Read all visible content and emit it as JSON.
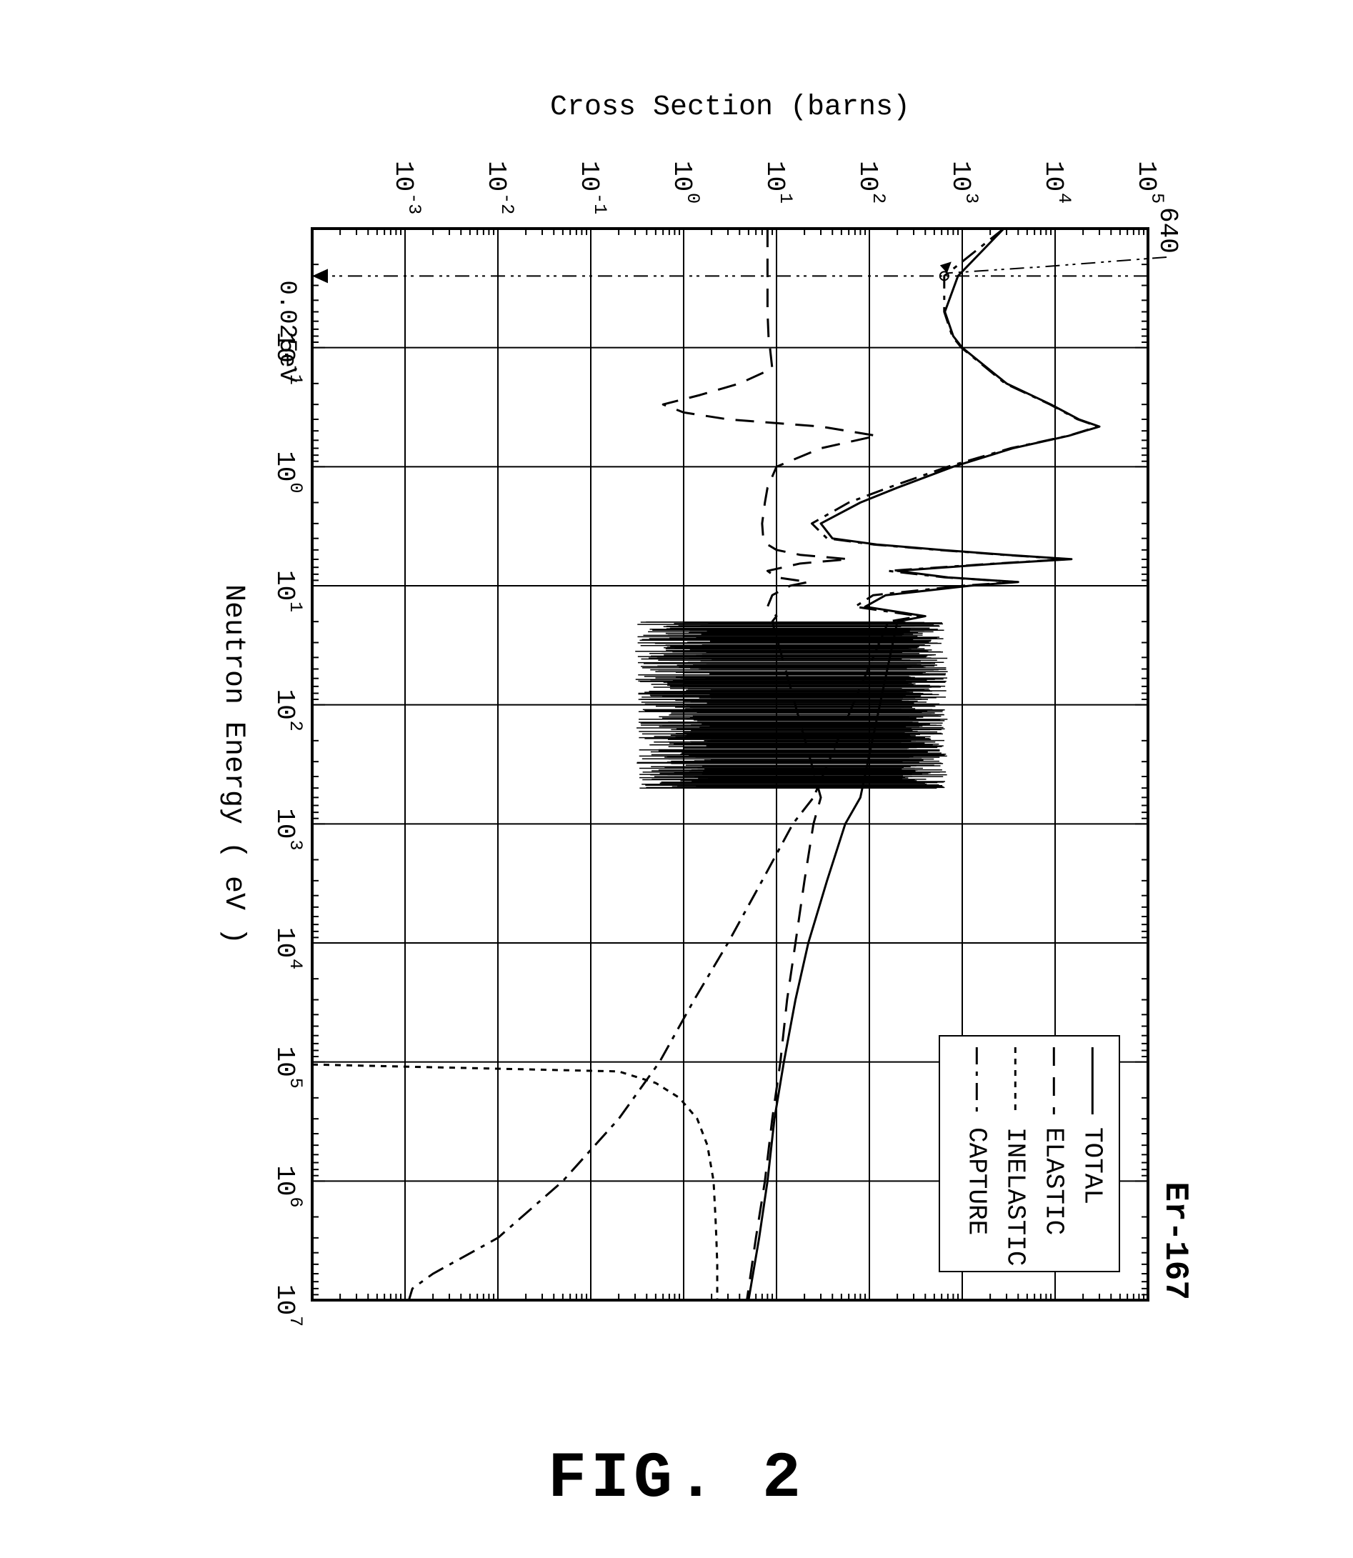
{
  "figure_caption": "FIG. 2",
  "isotope_title": "Er-167",
  "x_axis": {
    "label": "Neutron Energy ( eV )",
    "scale": "log",
    "lim": [
      0.01,
      10000000.0
    ],
    "ticks_exp": [
      -1,
      0,
      1,
      2,
      3,
      4,
      5,
      6,
      7
    ],
    "label_fontsize": 40,
    "tick_fontsize": 36
  },
  "y_axis": {
    "label": "Cross Section (barns)",
    "scale": "log",
    "lim": [
      0.0001,
      100000.0
    ],
    "ticks_exp": [
      -3,
      -2,
      -1,
      0,
      1,
      2,
      3,
      4,
      5
    ],
    "label_fontsize": 40,
    "tick_fontsize": 36
  },
  "colors": {
    "bg": "#ffffff",
    "ink": "#000000",
    "axis": "#000000",
    "grid": "#000000"
  },
  "line_width": 3,
  "grid_line_width": 2,
  "legend": {
    "items": [
      {
        "label": "TOTAL",
        "dash": "solid"
      },
      {
        "label": "ELASTIC",
        "dash": "long"
      },
      {
        "label": "INELASTIC",
        "dash": "short"
      },
      {
        "label": "CAPTURE",
        "dash": "dashdot"
      }
    ],
    "fontsize": 36,
    "position": "upper-right",
    "box": true
  },
  "annotations": {
    "thermal_energy_label": "0.025eV",
    "thermal_energy_x": 0.025,
    "capture_640_label": "640",
    "capture_640_y": 640
  },
  "resonance_band": {
    "x_lo": 20,
    "x_hi": 500,
    "y_lo": 0.3,
    "y_hi": 700
  },
  "series": {
    "total": {
      "dash": "solid",
      "points": [
        [
          0.01,
          2800
        ],
        [
          0.025,
          900
        ],
        [
          0.05,
          650
        ],
        [
          0.08,
          800
        ],
        [
          0.1,
          1000
        ],
        [
          0.2,
          3000
        ],
        [
          0.3,
          9000
        ],
        [
          0.4,
          18000
        ],
        [
          0.46,
          30000
        ],
        [
          0.55,
          14000
        ],
        [
          0.7,
          3500
        ],
        [
          1.0,
          800
        ],
        [
          1.5,
          200
        ],
        [
          2.0,
          80
        ],
        [
          3.0,
          30
        ],
        [
          4.0,
          40
        ],
        [
          4.5,
          120
        ],
        [
          5.0,
          600
        ],
        [
          5.5,
          3000
        ],
        [
          5.98,
          15000
        ],
        [
          6.5,
          2500
        ],
        [
          7.5,
          200
        ],
        [
          8.5,
          700
        ],
        [
          9.3,
          4000
        ],
        [
          10,
          1200
        ],
        [
          12,
          150
        ],
        [
          15,
          90
        ],
        [
          18,
          400
        ],
        [
          20,
          200
        ],
        [
          600,
          80
        ],
        [
          1000,
          55
        ],
        [
          3000,
          35
        ],
        [
          10000.0,
          22
        ],
        [
          30000.0,
          16
        ],
        [
          100000.0,
          12
        ],
        [
          300000.0,
          9.5
        ],
        [
          1000000.0,
          8
        ],
        [
          3000000.0,
          6.5
        ],
        [
          10000000.0,
          5
        ]
      ]
    },
    "elastic": {
      "dash": "long",
      "points": [
        [
          0.01,
          8
        ],
        [
          0.025,
          8
        ],
        [
          0.05,
          8
        ],
        [
          0.08,
          8.2
        ],
        [
          0.1,
          8.5
        ],
        [
          0.15,
          9
        ],
        [
          0.2,
          4
        ],
        [
          0.25,
          1.5
        ],
        [
          0.3,
          0.6
        ],
        [
          0.35,
          1.0
        ],
        [
          0.4,
          3
        ],
        [
          0.46,
          30
        ],
        [
          0.55,
          120
        ],
        [
          0.7,
          30
        ],
        [
          1.0,
          10
        ],
        [
          1.5,
          8
        ],
        [
          2.0,
          7.5
        ],
        [
          3.0,
          7
        ],
        [
          4.0,
          7.2
        ],
        [
          4.5,
          8
        ],
        [
          5.0,
          10
        ],
        [
          5.5,
          18
        ],
        [
          5.98,
          60
        ],
        [
          6.5,
          18
        ],
        [
          7.5,
          8
        ],
        [
          8.5,
          10
        ],
        [
          9.3,
          22
        ],
        [
          10,
          14
        ],
        [
          12,
          9
        ],
        [
          15,
          8
        ],
        [
          18,
          10
        ],
        [
          20,
          9
        ],
        [
          600,
          30
        ],
        [
          1000,
          25
        ],
        [
          3000,
          20
        ],
        [
          10000.0,
          16
        ],
        [
          30000.0,
          13
        ],
        [
          100000.0,
          11
        ],
        [
          300000.0,
          9
        ],
        [
          1000000.0,
          7.5
        ],
        [
          3000000.0,
          6
        ],
        [
          10000000.0,
          4.8
        ]
      ]
    },
    "inelastic": {
      "dash": "short",
      "points": [
        [
          105000.0,
          0.0001
        ],
        [
          120000.0,
          0.2
        ],
        [
          150000.0,
          0.5
        ],
        [
          200000.0,
          0.9
        ],
        [
          300000.0,
          1.4
        ],
        [
          500000.0,
          1.8
        ],
        [
          800000.0,
          2.0
        ],
        [
          1000000.0,
          2.1
        ],
        [
          2000000.0,
          2.2
        ],
        [
          3000000.0,
          2.25
        ],
        [
          5000000.0,
          2.3
        ],
        [
          10000000.0,
          2.3
        ]
      ]
    },
    "capture": {
      "dash": "dashdot",
      "points": [
        [
          0.01,
          2800
        ],
        [
          0.025,
          640
        ],
        [
          0.05,
          640
        ],
        [
          0.08,
          780
        ],
        [
          0.1,
          980
        ],
        [
          0.2,
          2900
        ],
        [
          0.3,
          8800
        ],
        [
          0.4,
          17500
        ],
        [
          0.46,
          29000
        ],
        [
          0.55,
          13800
        ],
        [
          0.7,
          3300
        ],
        [
          1.0,
          700
        ],
        [
          1.5,
          160
        ],
        [
          2.0,
          60
        ],
        [
          3.0,
          24
        ],
        [
          4.0,
          35
        ],
        [
          4.5,
          110
        ],
        [
          5.0,
          550
        ],
        [
          5.5,
          2800
        ],
        [
          5.98,
          14000
        ],
        [
          6.5,
          2300
        ],
        [
          7.5,
          160
        ],
        [
          8.5,
          650
        ],
        [
          9.3,
          3800
        ],
        [
          10,
          1000
        ],
        [
          12,
          110
        ],
        [
          15,
          70
        ],
        [
          18,
          350
        ],
        [
          20,
          160
        ],
        [
          600,
          25
        ],
        [
          1000,
          15
        ],
        [
          3000,
          7
        ],
        [
          10000.0,
          3
        ],
        [
          30000.0,
          1.3
        ],
        [
          100000.0,
          0.55
        ],
        [
          300000.0,
          0.2
        ],
        [
          1000000.0,
          0.05
        ],
        [
          3000000.0,
          0.01
        ],
        [
          6000000.0,
          0.002
        ],
        [
          8000000.0,
          0.0012
        ],
        [
          10000000.0,
          0.0011
        ]
      ]
    }
  }
}
